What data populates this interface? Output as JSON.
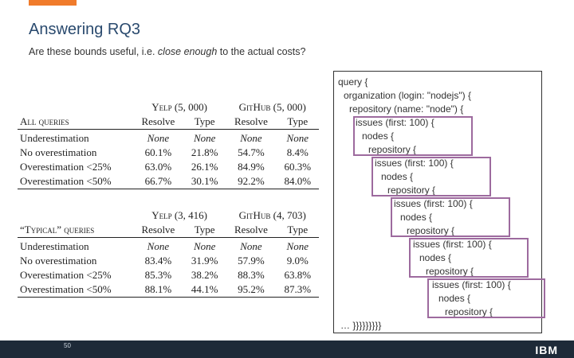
{
  "slide": {
    "title": "Answering RQ3",
    "subtitle_pre": "Are these bounds useful, i.e. ",
    "subtitle_em": "close enough",
    "subtitle_post": " to the actual costs?",
    "page_number": "50",
    "logo": "IBM"
  },
  "table_all": {
    "group_label": "All queries",
    "col_groups": [
      "Yelp (5, 000)",
      "GitHub (5, 000)"
    ],
    "sub_headers": [
      "Resolve",
      "Type",
      "Resolve",
      "Type"
    ],
    "rows": [
      {
        "label": "Underestimation",
        "values": [
          "None",
          "None",
          "None",
          "None"
        ]
      },
      {
        "label": "No overestimation",
        "values": [
          "60.1%",
          "21.8%",
          "54.7%",
          "8.4%"
        ]
      },
      {
        "label": "Overestimation <25%",
        "values": [
          "63.0%",
          "26.1%",
          "84.9%",
          "60.3%"
        ]
      },
      {
        "label": "Overestimation <50%",
        "values": [
          "66.7%",
          "30.1%",
          "92.2%",
          "84.0%"
        ]
      }
    ]
  },
  "table_typical": {
    "group_label": "“Typical” queries",
    "col_groups": [
      "Yelp (3, 416)",
      "GitHub (4, 703)"
    ],
    "sub_headers": [
      "Resolve",
      "Type",
      "Resolve",
      "Type"
    ],
    "rows": [
      {
        "label": "Underestimation",
        "values": [
          "None",
          "None",
          "None",
          "None"
        ]
      },
      {
        "label": "No overestimation",
        "values": [
          "83.4%",
          "31.9%",
          "57.9%",
          "9.0%"
        ]
      },
      {
        "label": "Overestimation <25%",
        "values": [
          "85.3%",
          "38.2%",
          "88.3%",
          "63.8%"
        ]
      },
      {
        "label": "Overestimation <50%",
        "values": [
          "88.1%",
          "44.1%",
          "95.2%",
          "87.3%"
        ]
      }
    ]
  },
  "code": {
    "lines": [
      "query {",
      "organization (login: \"nodejs\") {",
      "repository (name: \"node\") {",
      "issues (first: 100) {",
      "nodes {",
      "repository {",
      "issues (first: 100) {",
      "nodes {",
      "repository {",
      "issues (first: 100) {",
      "nodes {",
      "repository {",
      "issues (first: 100) {",
      "nodes {",
      "repository {",
      "issues (first: 100) {",
      "nodes {",
      "repository {",
      "… }}}}}}}}}"
    ]
  }
}
